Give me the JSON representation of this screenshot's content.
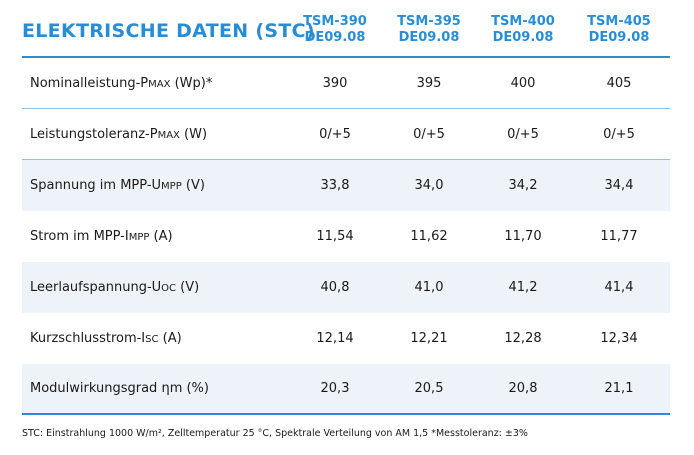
{
  "title": "ELEKTRISCHE DATEN (STC)",
  "models": [
    {
      "line1": "TSM-390",
      "line2": "DE09.08"
    },
    {
      "line1": "TSM-395",
      "line2": "DE09.08"
    },
    {
      "line1": "TSM-400",
      "line2": "DE09.08"
    },
    {
      "line1": "TSM-405",
      "line2": "DE09.08"
    }
  ],
  "rows": [
    {
      "label_pre": "Nominalleistung-P",
      "label_sub": "max",
      "label_post": " (Wp)*",
      "values": [
        "390",
        "395",
        "400",
        "405"
      ],
      "shaded": false
    },
    {
      "label_pre": "Leistungstoleranz-P",
      "label_sub": "max",
      "label_post": " (W)",
      "values": [
        "0/+5",
        "0/+5",
        "0/+5",
        "0/+5"
      ],
      "shaded": false
    },
    {
      "label_pre": "Spannung im MPP-U",
      "label_sub": "mpp",
      "label_post": " (V)",
      "values": [
        "33,8",
        "34,0",
        "34,2",
        "34,4"
      ],
      "shaded": true
    },
    {
      "label_pre": "Strom im MPP-I",
      "label_sub": "mpp",
      "label_post": " (A)",
      "values": [
        "11,54",
        "11,62",
        "11,70",
        "11,77"
      ],
      "shaded": true
    },
    {
      "label_pre": "Leerlaufspannung-U",
      "label_sub": "oc",
      "label_post": " (V)",
      "values": [
        "40,8",
        "41,0",
        "41,2",
        "41,4"
      ],
      "shaded": true
    },
    {
      "label_pre": "Kurzschlusstrom-I",
      "label_sub": "sc",
      "label_post": " (A)",
      "values": [
        "12,14",
        "12,21",
        "12,28",
        "12,34"
      ],
      "shaded": true
    },
    {
      "label_pre": "Modulwirkungsgrad ",
      "label_sub": "",
      "label_post": "ηm (%)",
      "values": [
        "20,3",
        "20,5",
        "20,8",
        "21,1"
      ],
      "shaded": true
    }
  ],
  "footnote": "STC: Einstrahlung 1000 W/m², Zelltemperatur 25 °C, Spektrale Verteilung von AM 1,5   *Messtoleranz: ±3%",
  "colors": {
    "accent": "#2a8dd4",
    "shade": "#eef3fa"
  }
}
